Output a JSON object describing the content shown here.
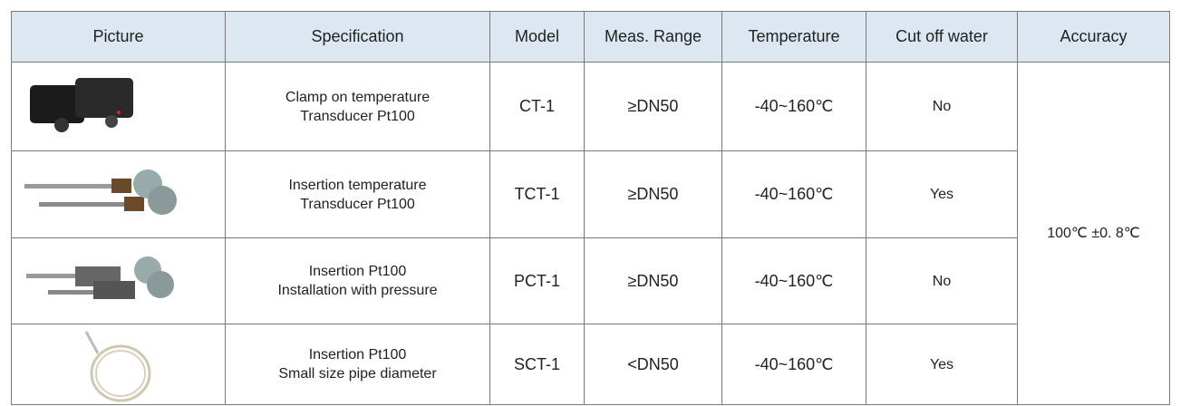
{
  "table": {
    "header": [
      "Picture",
      "Specification",
      "Model",
      "Meas. Range",
      "Temperature",
      "Cut off water",
      "Accuracy"
    ],
    "rows": [
      {
        "specification": [
          "Clamp on temperature",
          "Transducer Pt100"
        ],
        "model": "CT-1",
        "range": "≥DN50",
        "temperature": "-40~160℃",
        "cut_off_water": "No"
      },
      {
        "specification": [
          "Insertion temperature",
          "Transducer Pt100"
        ],
        "model": "TCT-1",
        "range": "≥DN50",
        "temperature": "-40~160℃",
        "cut_off_water": "Yes"
      },
      {
        "specification": [
          "Insertion Pt100",
          "Installation with pressure"
        ],
        "model": "PCT-1",
        "range": "≥DN50",
        "temperature": "-40~160℃",
        "cut_off_water": "No"
      },
      {
        "specification": [
          "Insertion Pt100",
          "Small size pipe diameter"
        ],
        "model": "SCT-1",
        "range": "<DN50",
        "temperature": "-40~160℃",
        "cut_off_water": "Yes"
      }
    ],
    "accuracy": "100℃ ±0. 8℃"
  }
}
